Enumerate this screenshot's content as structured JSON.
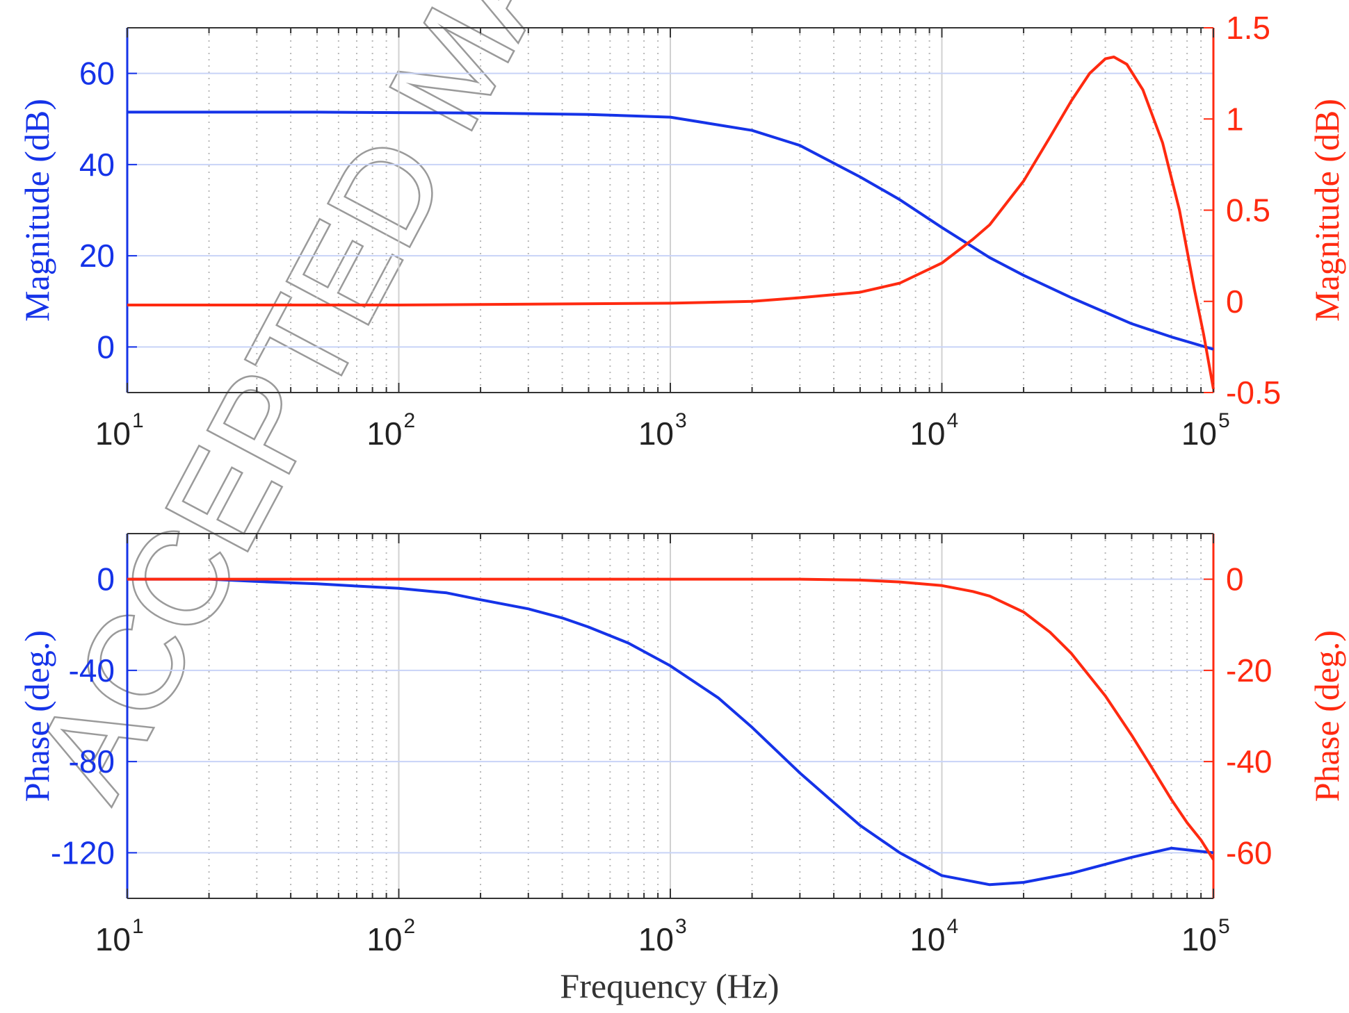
{
  "watermark": "ACCEPTED MANUSCRIPT",
  "colors": {
    "left_series": "#1533e8",
    "right_series": "#ff2a10",
    "axes": "#333333",
    "grid": "#b8b8b8",
    "tick_grid_left": "#c8d3f7"
  },
  "chart_data": [
    {
      "type": "line",
      "xscale": "log",
      "xlim": [
        10,
        100000
      ],
      "xticks": [
        {
          "base": "10",
          "exp": "1"
        },
        {
          "base": "10",
          "exp": "2"
        },
        {
          "base": "10",
          "exp": "3"
        },
        {
          "base": "10",
          "exp": "4"
        },
        {
          "base": "10",
          "exp": "5"
        }
      ],
      "xlabel": "",
      "grid": "vertical major and minor (dotted), horizontal at left-axis ticks",
      "left_axis": {
        "label": "Magnitude (dB)",
        "ylim": [
          -10,
          70
        ],
        "ticks": [
          "0",
          "20",
          "40",
          "60"
        ],
        "tick_values": [
          0,
          20,
          40,
          60
        ]
      },
      "right_axis": {
        "label": "Magnitude (dB)",
        "ylim": [
          -0.5,
          1.5
        ],
        "ticks": [
          "-0.5",
          "0",
          "0.5",
          "1",
          "1.5"
        ],
        "tick_values": [
          -0.5,
          0,
          0.5,
          1,
          1.5
        ]
      },
      "series": [
        {
          "axis": "left",
          "color": "#1533e8",
          "x": [
            10,
            20,
            50,
            100,
            200,
            500,
            1000,
            2000,
            3000,
            5000,
            7000,
            10000,
            15000,
            20000,
            30000,
            50000,
            70000,
            100000
          ],
          "values": [
            51.5,
            51.5,
            51.5,
            51.4,
            51.3,
            51.0,
            50.4,
            47.5,
            44.2,
            37.3,
            32.3,
            26.2,
            19.6,
            15.7,
            10.8,
            5.1,
            2.2,
            -0.5
          ]
        },
        {
          "axis": "right",
          "color": "#ff2a10",
          "x": [
            10,
            100,
            1000,
            2000,
            3000,
            5000,
            7000,
            10000,
            13000,
            15000,
            20000,
            25000,
            30000,
            35000,
            40000,
            43000,
            48000,
            55000,
            65000,
            75000,
            85000,
            92000,
            100000
          ],
          "values": [
            -0.02,
            -0.02,
            -0.01,
            0.0,
            0.02,
            0.05,
            0.1,
            0.21,
            0.34,
            0.42,
            0.66,
            0.9,
            1.1,
            1.25,
            1.33,
            1.34,
            1.3,
            1.16,
            0.87,
            0.5,
            0.07,
            -0.18,
            -0.48
          ]
        }
      ]
    },
    {
      "type": "line",
      "xscale": "log",
      "xlim": [
        10,
        100000
      ],
      "xticks": [
        {
          "base": "10",
          "exp": "1"
        },
        {
          "base": "10",
          "exp": "2"
        },
        {
          "base": "10",
          "exp": "3"
        },
        {
          "base": "10",
          "exp": "4"
        },
        {
          "base": "10",
          "exp": "5"
        }
      ],
      "xlabel": "Frequency (Hz)",
      "grid": "vertical major and minor (dotted), horizontal at left-axis ticks",
      "left_axis": {
        "label": "Phase (deg.)",
        "ylim": [
          -140,
          20
        ],
        "ticks": [
          "-120",
          "-80",
          "-40",
          "0"
        ],
        "tick_values": [
          -120,
          -80,
          -40,
          0
        ]
      },
      "right_axis": {
        "label": "Phase (deg.)",
        "ylim": [
          -70,
          10
        ],
        "ticks": [
          "-60",
          "-40",
          "-20",
          "0"
        ],
        "tick_values": [
          -60,
          -40,
          -20,
          0
        ]
      },
      "series": [
        {
          "axis": "left",
          "color": "#1533e8",
          "x": [
            10,
            15,
            20,
            30,
            50,
            70,
            100,
            150,
            200,
            300,
            400,
            500,
            700,
            1000,
            1500,
            2000,
            3000,
            4000,
            5000,
            7000,
            10000,
            15000,
            20000,
            30000,
            50000,
            70000,
            100000
          ],
          "values": [
            0,
            0,
            0,
            -1,
            -2,
            -3,
            -4,
            -6,
            -9,
            -13,
            -17,
            -21,
            -28,
            -38,
            -52,
            -65,
            -85,
            -98,
            -108,
            -120,
            -130,
            -134,
            -133,
            -129,
            -122,
            -118,
            -120
          ]
        },
        {
          "axis": "right",
          "color": "#ff2a10",
          "x": [
            10,
            100,
            1000,
            2000,
            3000,
            5000,
            7000,
            10000,
            13000,
            15000,
            20000,
            25000,
            30000,
            40000,
            50000,
            60000,
            70000,
            80000,
            90000,
            100000
          ],
          "values": [
            0,
            0,
            0,
            0,
            0,
            -0.2,
            -0.6,
            -1.4,
            -2.7,
            -3.7,
            -7.2,
            -11.6,
            -16.3,
            -25.6,
            -34.2,
            -41.8,
            -48.3,
            -53.4,
            -57.2,
            -61.5
          ]
        }
      ]
    }
  ]
}
